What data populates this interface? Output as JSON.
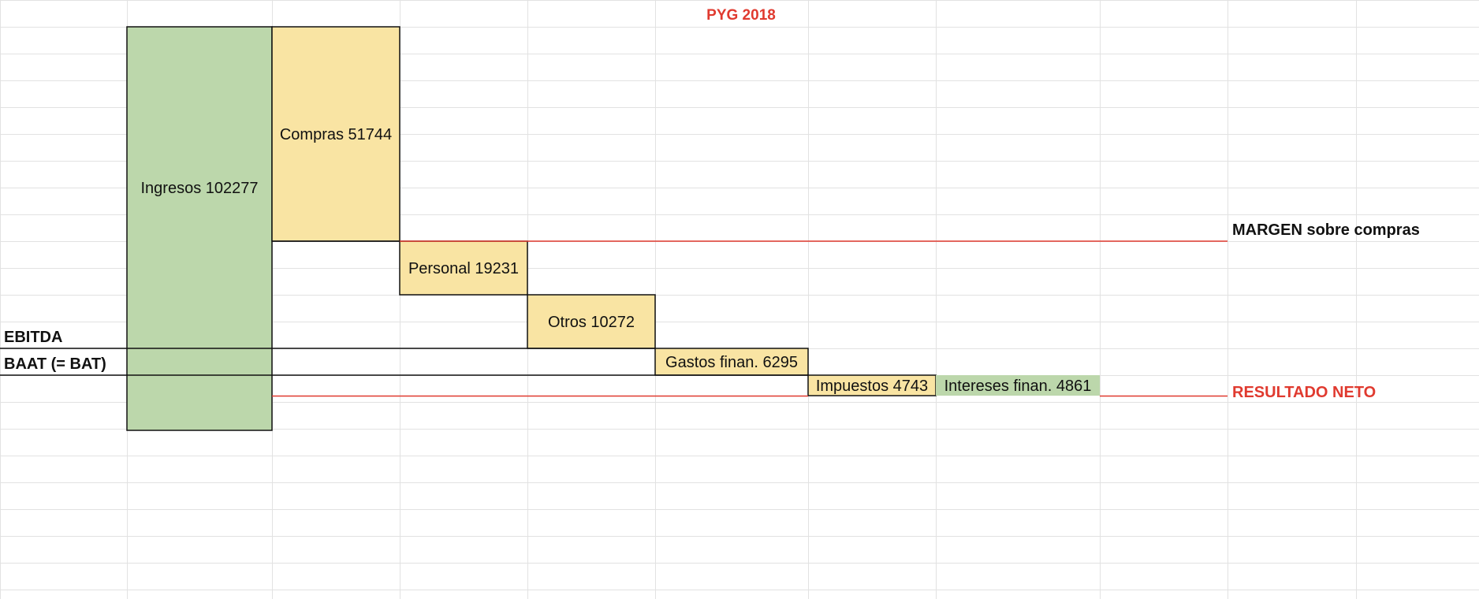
{
  "colors": {
    "income": "#bcd7ab",
    "expense": "#f9e4a3",
    "accent_red": "#e03a2f",
    "grid": "#e2e2e2",
    "border": "#111111"
  },
  "chart_data": {
    "type": "waterfall",
    "title": "PYG 2018",
    "bars": [
      {
        "label": "Ingresos 102277",
        "value": 102277,
        "kind": "income"
      },
      {
        "label": "Compras 51744",
        "value": 51744,
        "kind": "expense"
      },
      {
        "label": "Personal 19231",
        "value": 19231,
        "kind": "expense"
      },
      {
        "label": "Otros 10272",
        "value": 10272,
        "kind": "expense"
      },
      {
        "label": "Gastos finan. 6295",
        "value": 6295,
        "kind": "expense"
      },
      {
        "label": "Impuestos 4743",
        "value": 4743,
        "kind": "expense"
      },
      {
        "label": "Intereses finan. 4861",
        "value": 4861,
        "kind": "income"
      }
    ],
    "levels": [
      {
        "label": "MARGEN sobre compras",
        "color": "#111111",
        "line_color": "#e03a2f"
      },
      {
        "label": "EBITDA",
        "color": "#111111"
      },
      {
        "label": "BAAT (= BAT)",
        "color": "#111111"
      },
      {
        "label": "RESULTADO NETO",
        "color": "#e03a2f",
        "line_color": "#e03a2f"
      }
    ]
  }
}
